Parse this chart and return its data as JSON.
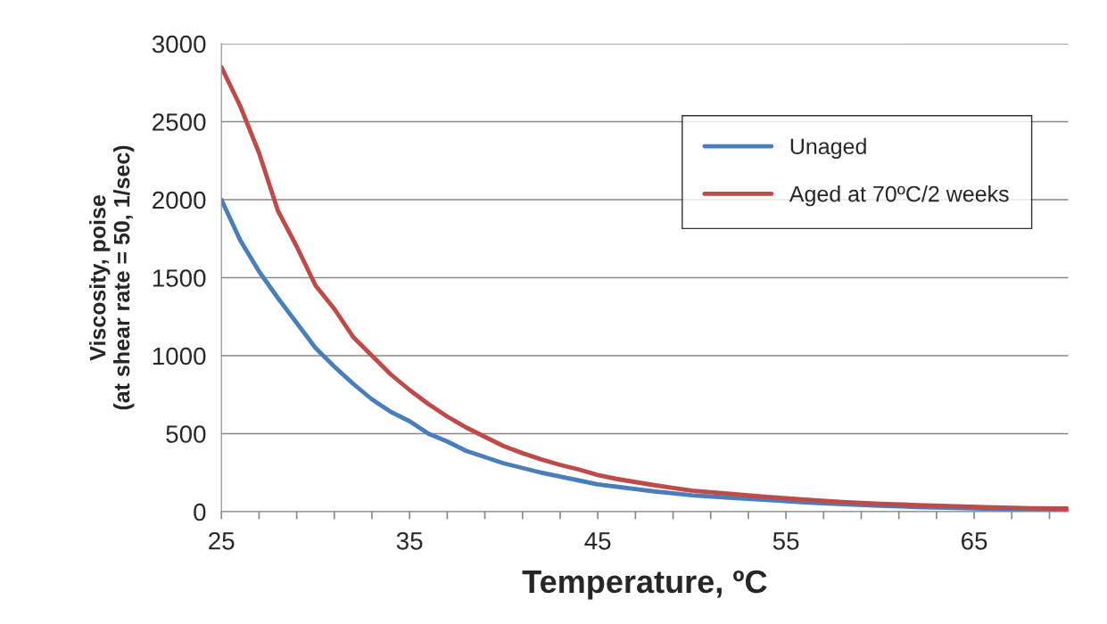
{
  "chart_data": {
    "type": "line",
    "xlabel": "Temperature, ºC",
    "ylabel": "Viscosity, poise\n(at shear rate = 50, 1/sec)",
    "x": [
      25,
      26,
      27,
      28,
      29,
      30,
      31,
      32,
      33,
      34,
      35,
      36,
      37,
      38,
      39,
      40,
      41,
      42,
      43,
      44,
      45,
      46,
      47,
      48,
      49,
      50,
      52,
      54,
      56,
      58,
      60,
      62,
      64,
      66,
      68,
      70
    ],
    "series": [
      {
        "name": "Unaged",
        "color": "#4a7ebb",
        "values": [
          2000,
          1740,
          1540,
          1370,
          1210,
          1050,
          930,
          820,
          720,
          640,
          580,
          500,
          450,
          390,
          350,
          310,
          280,
          250,
          225,
          200,
          175,
          160,
          145,
          130,
          118,
          105,
          90,
          75,
          60,
          48,
          38,
          30,
          24,
          18,
          15,
          13
        ]
      },
      {
        "name": "Aged at 70ºC/2 weeks",
        "color": "#be4b48",
        "values": [
          2850,
          2600,
          2300,
          1930,
          1700,
          1450,
          1300,
          1120,
          1000,
          880,
          780,
          690,
          610,
          540,
          480,
          420,
          375,
          335,
          300,
          270,
          235,
          210,
          190,
          170,
          152,
          135,
          115,
          95,
          78,
          62,
          50,
          42,
          35,
          28,
          22,
          20
        ]
      }
    ],
    "xlim": [
      25,
      70
    ],
    "xticks": [
      25,
      {
        "value": 27,
        "label": null
      },
      {
        "value": 29,
        "label": null
      },
      {
        "value": 31,
        "label": null
      },
      {
        "value": 33,
        "label": null
      },
      35,
      {
        "value": 37,
        "label": null
      },
      {
        "value": 39,
        "label": null
      },
      {
        "value": 41,
        "label": null
      },
      {
        "value": 43,
        "label": null
      },
      45,
      {
        "value": 47,
        "label": null
      },
      {
        "value": 49,
        "label": null
      },
      {
        "value": 51,
        "label": null
      },
      {
        "value": 53,
        "label": null
      },
      55,
      {
        "value": 57,
        "label": null
      },
      {
        "value": 59,
        "label": null
      },
      {
        "value": 61,
        "label": null
      },
      {
        "value": 63,
        "label": null
      },
      65,
      {
        "value": 67,
        "label": null
      },
      {
        "value": 69,
        "label": null
      }
    ],
    "ylim": [
      0,
      3000
    ],
    "yticks": [
      0,
      500,
      1000,
      1500,
      2000,
      2500,
      3000
    ],
    "grid": "y",
    "legend": "top right",
    "marker": "none",
    "line_style": "solid"
  }
}
